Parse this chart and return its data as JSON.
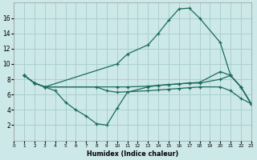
{
  "xlabel": "Humidex (Indice chaleur)",
  "bg_color": "#cde8e8",
  "grid_color": "#aacfcf",
  "line_color": "#1a6b5a",
  "curve1_x": [
    1,
    2,
    3,
    4,
    5,
    6,
    7,
    8,
    9,
    10,
    11,
    13,
    14,
    15,
    16,
    17,
    18,
    20,
    21,
    22,
    23
  ],
  "curve1_y": [
    8.5,
    7.5,
    7.0,
    6.5,
    5.0,
    4.0,
    3.2,
    2.2,
    2.0,
    4.2,
    6.3,
    7.0,
    7.2,
    7.3,
    7.4,
    7.5,
    7.5,
    8.0,
    8.5,
    7.0,
    4.8
  ],
  "curve2_x": [
    1,
    2,
    3,
    10,
    11,
    13,
    14,
    15,
    16,
    17,
    18,
    20,
    21,
    22,
    23
  ],
  "curve2_y": [
    8.5,
    7.5,
    7.0,
    10.0,
    11.3,
    12.5,
    14.0,
    15.7,
    17.2,
    17.3,
    16.0,
    12.8,
    8.5,
    7.0,
    4.8
  ],
  "curve3_x": [
    1,
    2,
    3,
    10,
    11,
    13,
    14,
    15,
    16,
    17,
    18,
    20,
    21,
    22,
    23
  ],
  "curve3_y": [
    8.5,
    7.5,
    7.0,
    7.0,
    7.0,
    7.1,
    7.2,
    7.3,
    7.4,
    7.5,
    7.6,
    9.0,
    8.5,
    7.0,
    4.8
  ],
  "curve4_x": [
    1,
    2,
    3,
    8,
    9,
    10,
    13,
    14,
    15,
    16,
    17,
    18,
    20,
    21,
    22,
    23
  ],
  "curve4_y": [
    8.5,
    7.5,
    7.0,
    7.0,
    6.5,
    6.3,
    6.5,
    6.6,
    6.7,
    6.8,
    6.9,
    7.0,
    7.0,
    6.5,
    5.5,
    4.8
  ],
  "xlim": [
    0,
    23
  ],
  "ylim": [
    0,
    18
  ],
  "xticks": [
    0,
    1,
    2,
    3,
    4,
    5,
    6,
    7,
    8,
    9,
    10,
    11,
    12,
    13,
    14,
    15,
    16,
    17,
    18,
    19,
    20,
    21,
    22,
    23
  ],
  "yticks": [
    2,
    4,
    6,
    8,
    10,
    12,
    14,
    16
  ]
}
